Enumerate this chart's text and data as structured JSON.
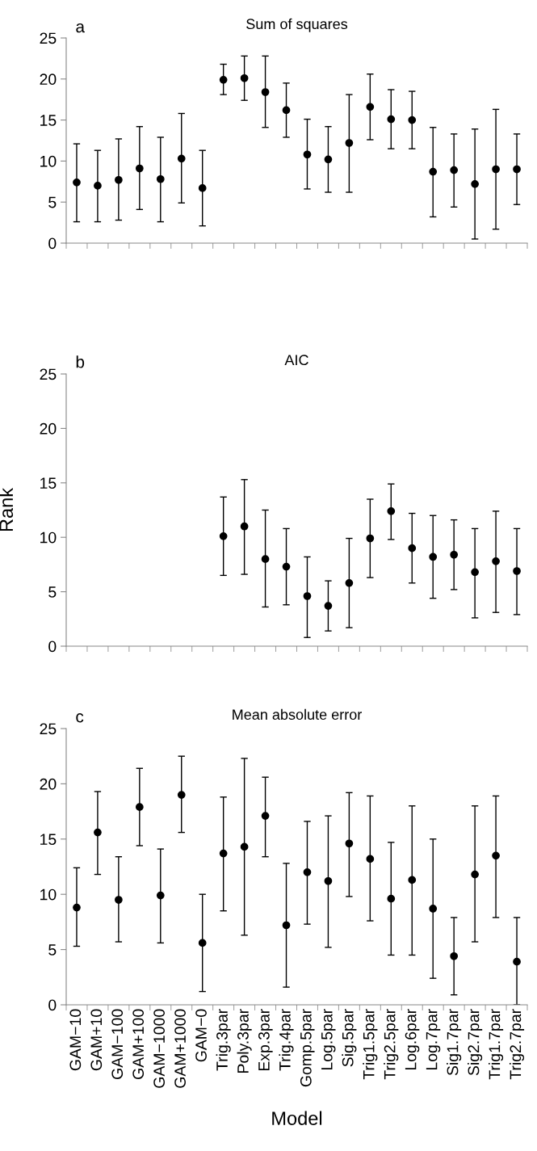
{
  "chart_data": [
    {
      "type": "scatter",
      "title": "Sum of squares",
      "annotations": [
        "a"
      ],
      "tick_labels": "y",
      "marker": "circle",
      "color": "#000000",
      "categories": [
        null,
        null,
        null,
        null,
        null,
        null,
        null,
        null,
        null,
        null,
        null,
        null,
        null,
        null,
        null,
        null,
        null,
        null,
        null,
        null,
        null,
        null
      ],
      "values": [
        7.4,
        7.0,
        7.7,
        9.1,
        7.8,
        10.3,
        6.7,
        19.9,
        20.1,
        18.4,
        16.2,
        10.8,
        10.2,
        12.2,
        16.6,
        15.1,
        15.0,
        8.7,
        8.9,
        7.2,
        9.0,
        9.0
      ],
      "errors": [
        [
          2.6,
          12.1
        ],
        [
          2.6,
          11.3
        ],
        [
          2.8,
          12.7
        ],
        [
          4.1,
          14.2
        ],
        [
          2.6,
          12.9
        ],
        [
          4.9,
          15.8
        ],
        [
          2.1,
          11.3
        ],
        [
          18.1,
          21.8
        ],
        [
          17.4,
          22.8
        ],
        [
          14.1,
          22.8
        ],
        [
          12.9,
          19.5
        ],
        [
          6.6,
          15.1
        ],
        [
          6.2,
          14.2
        ],
        [
          6.2,
          18.1
        ],
        [
          12.6,
          20.6
        ],
        [
          11.5,
          18.7
        ],
        [
          11.5,
          18.5
        ],
        [
          3.2,
          14.1
        ],
        [
          4.4,
          13.3
        ],
        [
          0.5,
          13.9
        ],
        [
          1.7,
          16.3
        ],
        [
          4.7,
          13.3
        ]
      ],
      "ylim": [
        0,
        25
      ],
      "yticks": [
        0,
        5,
        10,
        15,
        20,
        25
      ]
    },
    {
      "type": "scatter",
      "title": "AIC",
      "ylabel": "Rank",
      "annotations": [
        "b"
      ],
      "tick_labels": "y",
      "marker": "circle",
      "color": "#000000",
      "categories": [
        null,
        null,
        null,
        null,
        null,
        null,
        null,
        null,
        null,
        null,
        null,
        null,
        null,
        null,
        null,
        null,
        null,
        null,
        null,
        null,
        null,
        null
      ],
      "values": [
        null,
        null,
        null,
        null,
        null,
        null,
        null,
        10.1,
        11.0,
        8.0,
        7.3,
        4.6,
        3.7,
        5.8,
        9.9,
        12.4,
        9.0,
        8.2,
        8.4,
        6.8,
        7.8,
        6.9
      ],
      "errors": [
        null,
        null,
        null,
        null,
        null,
        null,
        null,
        [
          6.5,
          13.7
        ],
        [
          6.6,
          15.3
        ],
        [
          3.6,
          12.5
        ],
        [
          3.8,
          10.8
        ],
        [
          0.8,
          8.2
        ],
        [
          1.4,
          6.0
        ],
        [
          1.7,
          9.9
        ],
        [
          6.3,
          13.5
        ],
        [
          9.8,
          14.9
        ],
        [
          5.8,
          12.2
        ],
        [
          4.4,
          12.0
        ],
        [
          5.2,
          11.6
        ],
        [
          2.6,
          10.8
        ],
        [
          3.1,
          12.4
        ],
        [
          2.9,
          10.8
        ]
      ],
      "ylim": [
        0,
        25
      ],
      "yticks": [
        0,
        5,
        10,
        15,
        20,
        25
      ]
    },
    {
      "type": "scatter",
      "title": "Mean absolute error",
      "xlabel": "Model",
      "annotations": [
        "c"
      ],
      "marker": "circle",
      "color": "#000000",
      "categories": [
        "GAM−10",
        "GAM+10",
        "GAM−100",
        "GAM+100",
        "GAM−1000",
        "GAM+1000",
        "GAM−0",
        "Trig.3par",
        "Poly.3par",
        "Exp.3par",
        "Trig.4par",
        "Gomp.5par",
        "Log.5par",
        "Sig.5par",
        "Trig1.5par",
        "Trig2.5par",
        "Log.6par",
        "Log.7par",
        "Sig1.7par",
        "Sig2.7par",
        "Trig1.7par",
        "Trig2.7par"
      ],
      "values": [
        8.8,
        15.6,
        9.5,
        17.9,
        9.9,
        19.0,
        5.6,
        13.7,
        14.3,
        17.1,
        7.2,
        12.0,
        11.2,
        14.6,
        13.2,
        9.6,
        11.3,
        8.7,
        4.4,
        11.8,
        13.5,
        3.9
      ],
      "errors": [
        [
          5.3,
          12.4
        ],
        [
          11.8,
          19.3
        ],
        [
          5.7,
          13.4
        ],
        [
          14.4,
          21.4
        ],
        [
          5.6,
          14.1
        ],
        [
          15.6,
          22.5
        ],
        [
          1.2,
          10.0
        ],
        [
          8.5,
          18.8
        ],
        [
          6.3,
          22.3
        ],
        [
          13.4,
          20.6
        ],
        [
          1.6,
          12.8
        ],
        [
          7.3,
          16.6
        ],
        [
          5.2,
          17.1
        ],
        [
          9.8,
          19.2
        ],
        [
          7.6,
          18.9
        ],
        [
          4.5,
          14.7
        ],
        [
          4.5,
          18.0
        ],
        [
          2.4,
          15.0
        ],
        [
          0.9,
          7.9
        ],
        [
          5.7,
          18.0
        ],
        [
          7.9,
          18.9
        ],
        [
          0.0,
          7.9
        ]
      ],
      "ylim": [
        0,
        25
      ],
      "yticks": [
        0,
        5,
        10,
        15,
        20,
        25
      ]
    }
  ]
}
